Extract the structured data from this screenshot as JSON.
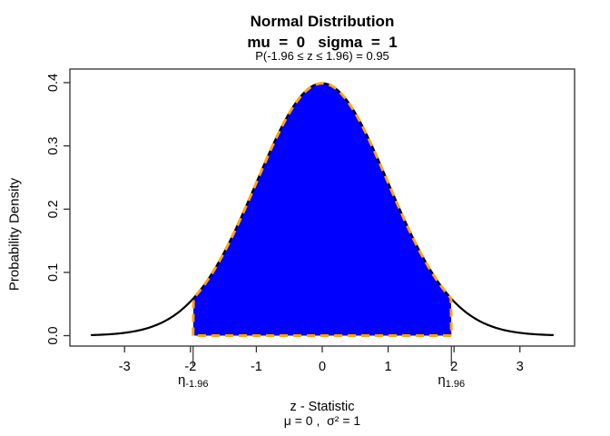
{
  "chart_data": {
    "type": "area",
    "title": "Normal Distribution",
    "subtitle": "mu  =  0   sigma  =  1",
    "annotation": "P(-1.96 ≤ z ≤ 1.96) = 0.95",
    "xlabel": "z - Statistic",
    "xlabel_sub": "μ = 0 ,  σ² = 1",
    "ylabel": "Probability Density",
    "distribution": "normal",
    "mu": 0,
    "sigma": 1,
    "curve_range": [
      -3.5,
      3.5
    ],
    "xlim": [
      -3.83,
      3.83
    ],
    "ylim": [
      -0.0165,
      0.4215
    ],
    "x_ticks": [
      {
        "v": -3,
        "label": "-3"
      },
      {
        "v": -2,
        "label": "-2"
      },
      {
        "v": -1,
        "label": "-1"
      },
      {
        "v": 0,
        "label": "0"
      },
      {
        "v": 1,
        "label": "1"
      },
      {
        "v": 2,
        "label": "2"
      },
      {
        "v": 3,
        "label": "3"
      }
    ],
    "y_ticks": [
      {
        "v": 0.0,
        "label": "0.0"
      },
      {
        "v": 0.1,
        "label": "0.1"
      },
      {
        "v": 0.2,
        "label": "0.2"
      },
      {
        "v": 0.3,
        "label": "0.3"
      },
      {
        "v": 0.4,
        "label": "0.4"
      }
    ],
    "special_ticks": [
      {
        "v": -1.96,
        "base": "η",
        "sub": "-1.96"
      },
      {
        "v": 1.96,
        "base": "η",
        "sub": "1.96"
      }
    ],
    "shade": {
      "from": -1.96,
      "to": 1.96,
      "probability": 0.95,
      "fill": "#0000ff",
      "border": "#ffa500",
      "border_width": 3,
      "dash": "9 6"
    },
    "curve_color": "#000000",
    "curve_width": 2.2,
    "axis_color": "#303030",
    "background": "#ffffff"
  }
}
